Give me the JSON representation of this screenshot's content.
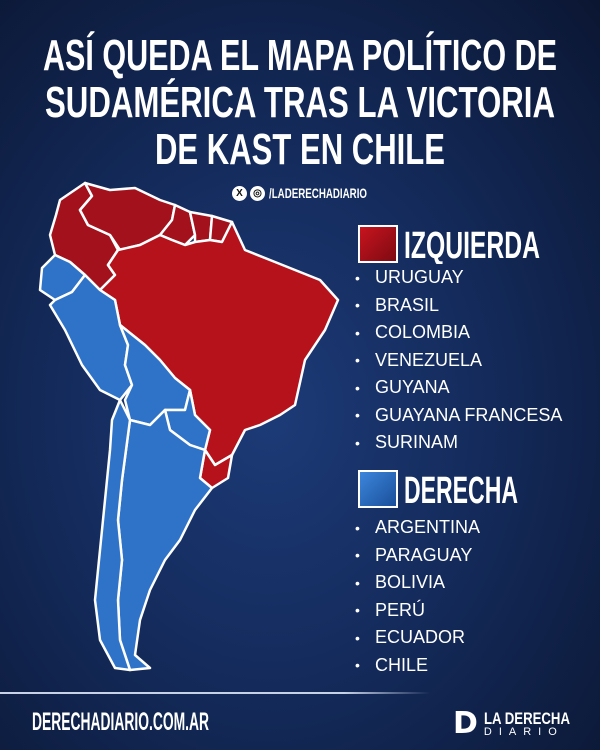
{
  "title": {
    "lines": [
      "ASÍ QUEDA EL MAPA POLÍTICO DE",
      "SUDAMÉRICA TRAS LA VICTORIA",
      "DE KAST EN CHILE"
    ]
  },
  "social": {
    "icons": [
      "x-icon",
      "instagram-icon"
    ],
    "handle": "/LADERECHADIARIO"
  },
  "colors": {
    "izquierda": "#b5121b",
    "derecha": "#2f73c8",
    "background": "#142b5c"
  },
  "legend": {
    "left": {
      "label": "IZQUIERDA",
      "items": [
        "URUGUAY",
        "BRASIL",
        "COLOMBIA",
        "VENEZUELA",
        "GUYANA",
        "GUAYANA FRANCESA",
        "SURINAM"
      ]
    },
    "right": {
      "label": "DERECHA",
      "items": [
        "ARGENTINA",
        "PARAGUAY",
        "BOLIVIA",
        "PERÚ",
        "ECUADOR",
        "CHILE"
      ]
    }
  },
  "footer": {
    "site": "DERECHADIARIO.COM.AR",
    "brand_top": "LA DERECHA",
    "brand_bottom": "DIARIO",
    "logo_letter": "D"
  }
}
